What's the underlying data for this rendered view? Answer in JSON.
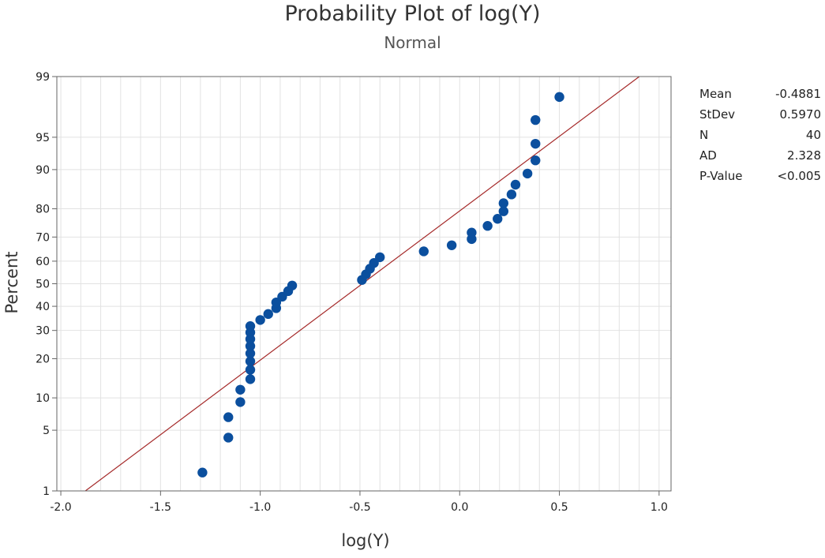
{
  "chart_data": {
    "type": "scatter",
    "title": "Probability Plot of log(Y)",
    "subtitle": "Normal",
    "xlabel": "log(Y)",
    "ylabel": "Percent",
    "xlim": [
      -2.0,
      1.0
    ],
    "ylim": [
      1,
      99
    ],
    "y_scale": "normal-probability",
    "grid": true,
    "x_ticks": [
      -2.0,
      -1.5,
      -1.0,
      -0.5,
      0.0,
      0.5,
      1.0
    ],
    "x_tick_labels": [
      "-2.0",
      "-1.5",
      "-1.0",
      "-0.5",
      "0.0",
      "0.5",
      "1.0"
    ],
    "y_ticks": [
      1,
      5,
      10,
      20,
      30,
      40,
      50,
      60,
      70,
      80,
      90,
      95,
      99
    ],
    "y_tick_labels": [
      "1",
      "5",
      "10",
      "20",
      "30",
      "40",
      "50",
      "60",
      "70",
      "80",
      "90",
      "95",
      "99"
    ],
    "marker_color": "#0b4f9e",
    "fit_line_color": "#a52a2a",
    "fit_line": {
      "mean": -0.4881,
      "stdev": 0.597
    },
    "points": [
      {
        "x": -1.29,
        "y": 1.7
      },
      {
        "x": -1.16,
        "y": 4.2
      },
      {
        "x": -1.16,
        "y": 6.7
      },
      {
        "x": -1.1,
        "y": 9.2
      },
      {
        "x": -1.1,
        "y": 11.7
      },
      {
        "x": -1.05,
        "y": 14.2
      },
      {
        "x": -1.05,
        "y": 16.7
      },
      {
        "x": -1.05,
        "y": 19.2
      },
      {
        "x": -1.05,
        "y": 21.7
      },
      {
        "x": -1.05,
        "y": 24.2
      },
      {
        "x": -1.05,
        "y": 26.7
      },
      {
        "x": -1.05,
        "y": 29.2
      },
      {
        "x": -1.05,
        "y": 31.7
      },
      {
        "x": -1.0,
        "y": 34.2
      },
      {
        "x": -0.96,
        "y": 36.7
      },
      {
        "x": -0.92,
        "y": 39.2
      },
      {
        "x": -0.92,
        "y": 41.7
      },
      {
        "x": -0.89,
        "y": 44.2
      },
      {
        "x": -0.86,
        "y": 46.7
      },
      {
        "x": -0.84,
        "y": 49.2
      },
      {
        "x": -0.49,
        "y": 51.7
      },
      {
        "x": -0.47,
        "y": 54.2
      },
      {
        "x": -0.45,
        "y": 56.7
      },
      {
        "x": -0.43,
        "y": 59.2
      },
      {
        "x": -0.4,
        "y": 61.7
      },
      {
        "x": -0.18,
        "y": 64.2
      },
      {
        "x": -0.04,
        "y": 66.7
      },
      {
        "x": 0.06,
        "y": 69.2
      },
      {
        "x": 0.06,
        "y": 71.7
      },
      {
        "x": 0.14,
        "y": 74.2
      },
      {
        "x": 0.19,
        "y": 76.7
      },
      {
        "x": 0.22,
        "y": 79.2
      },
      {
        "x": 0.22,
        "y": 81.7
      },
      {
        "x": 0.26,
        "y": 84.2
      },
      {
        "x": 0.28,
        "y": 86.7
      },
      {
        "x": 0.34,
        "y": 89.2
      },
      {
        "x": 0.38,
        "y": 91.7
      },
      {
        "x": 0.38,
        "y": 94.2
      },
      {
        "x": 0.38,
        "y": 96.7
      },
      {
        "x": 0.5,
        "y": 98.2
      }
    ]
  },
  "stats": [
    {
      "label": "Mean",
      "value": "-0.4881"
    },
    {
      "label": "StDev",
      "value": "0.5970"
    },
    {
      "label": "N",
      "value": "40"
    },
    {
      "label": "AD",
      "value": "2.328"
    },
    {
      "label": "P-Value",
      "value": "<0.005"
    }
  ]
}
